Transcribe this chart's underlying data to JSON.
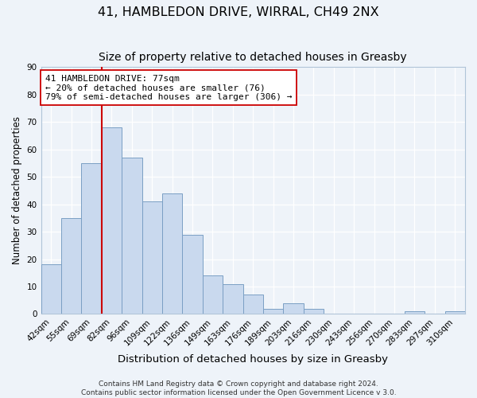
{
  "title": "41, HAMBLEDON DRIVE, WIRRAL, CH49 2NX",
  "subtitle": "Size of property relative to detached houses in Greasby",
  "xlabel": "Distribution of detached houses by size in Greasby",
  "ylabel": "Number of detached properties",
  "bar_labels": [
    "42sqm",
    "55sqm",
    "69sqm",
    "82sqm",
    "96sqm",
    "109sqm",
    "122sqm",
    "136sqm",
    "149sqm",
    "163sqm",
    "176sqm",
    "189sqm",
    "203sqm",
    "216sqm",
    "230sqm",
    "243sqm",
    "256sqm",
    "270sqm",
    "283sqm",
    "297sqm",
    "310sqm"
  ],
  "bar_values": [
    18,
    35,
    55,
    68,
    57,
    41,
    44,
    29,
    14,
    11,
    7,
    2,
    4,
    2,
    0,
    0,
    0,
    0,
    1,
    0,
    1
  ],
  "bar_color": "#c9d9ee",
  "bar_edge_color": "#7a9fc4",
  "vline_color": "#cc0000",
  "annotation_line1": "41 HAMBLEDON DRIVE: 77sqm",
  "annotation_line2": "← 20% of detached houses are smaller (76)",
  "annotation_line3": "79% of semi-detached houses are larger (306) →",
  "annotation_box_edgecolor": "#cc0000",
  "annotation_box_facecolor": "white",
  "ylim": [
    0,
    90
  ],
  "yticks": [
    0,
    10,
    20,
    30,
    40,
    50,
    60,
    70,
    80,
    90
  ],
  "footer_line1": "Contains HM Land Registry data © Crown copyright and database right 2024.",
  "footer_line2": "Contains public sector information licensed under the Open Government Licence v 3.0.",
  "bg_color": "#eef3f9",
  "title_fontsize": 11.5,
  "subtitle_fontsize": 10,
  "xlabel_fontsize": 9.5,
  "ylabel_fontsize": 8.5,
  "tick_fontsize": 7.5,
  "annot_fontsize": 8,
  "footer_fontsize": 6.5
}
